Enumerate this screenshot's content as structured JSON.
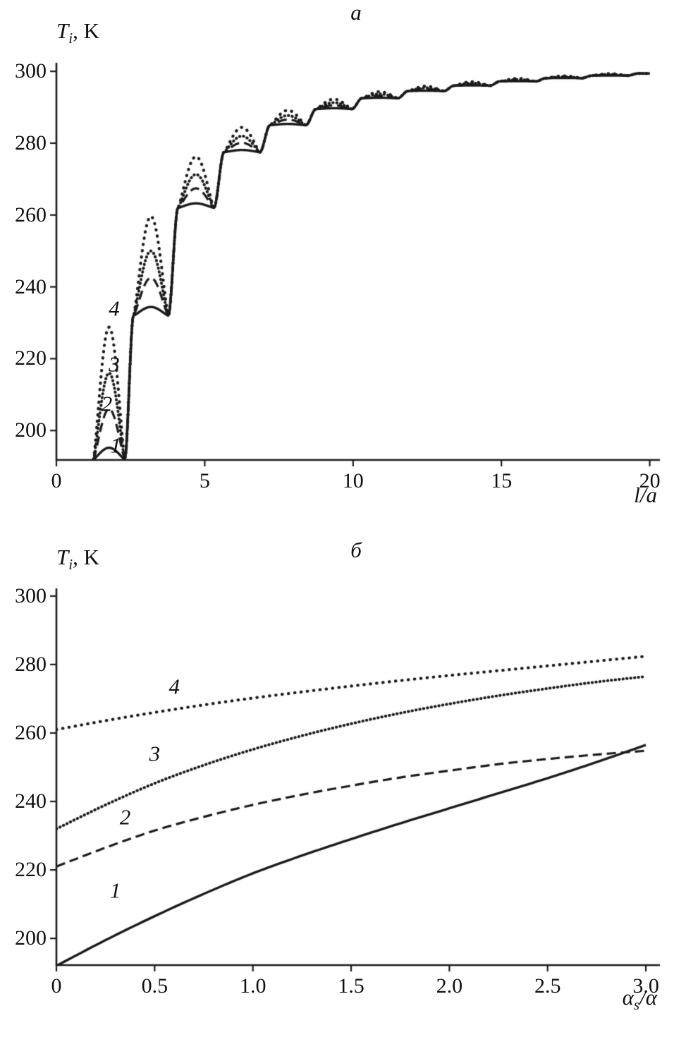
{
  "ink_color": "#1a1a1a",
  "background_color": "#ffffff",
  "chart_data": [
    {
      "type": "line",
      "title": "a",
      "ylabel_parts": {
        "symbol": "T",
        "subscript": "i",
        "unit": ", K"
      },
      "xlabel_parts": {
        "symbol": "l/a",
        "subscript": "",
        "unit": ""
      },
      "xlim": [
        0,
        20.2
      ],
      "ylim": [
        191.8,
        301.2
      ],
      "xticks": [
        0,
        5,
        10,
        15,
        20
      ],
      "xtick_labels": [
        "0",
        "5",
        "10",
        "15",
        "20"
      ],
      "yticks": [
        200,
        220,
        240,
        260,
        280,
        300
      ],
      "ytick_labels": [
        "200",
        "220",
        "240",
        "260",
        "280",
        "300"
      ],
      "grid": false,
      "model": "stepped-scallops",
      "x_draw_max": 20.0,
      "step_boundaries": [
        1.25,
        2.6,
        4.1,
        5.65,
        7.2,
        8.75,
        10.3,
        11.85,
        13.4,
        14.95,
        16.5,
        18.05,
        19.6
      ],
      "plateau_levels": [
        192,
        232,
        262,
        277.5,
        285,
        289.5,
        292.5,
        294.5,
        296,
        297.2,
        298.1,
        298.8,
        299.4
      ],
      "ramp_fraction": 0.22,
      "series": [
        {
          "name": "1",
          "style": "solid",
          "hump_fraction": 0.08
        },
        {
          "name": "2",
          "style": "dashed",
          "hump_fraction": 0.35
        },
        {
          "name": "3",
          "style": "dotted-dense",
          "hump_fraction": 0.6
        },
        {
          "name": "4",
          "style": "dotted-sparse",
          "hump_fraction": 0.92
        }
      ],
      "curve_labels": [
        {
          "text": "4",
          "x": 1.95,
          "y": 234
        },
        {
          "text": "3",
          "x": 1.95,
          "y": 218.5
        },
        {
          "text": "2",
          "x": 1.7,
          "y": 207.5
        },
        {
          "text": "1",
          "x": 2.0,
          "y": 196
        }
      ]
    },
    {
      "type": "line",
      "title": "б",
      "ylabel_parts": {
        "symbol": "T",
        "subscript": "i",
        "unit": ", K"
      },
      "xlabel_parts": {
        "symbol": "α",
        "subscript": "s",
        "unit": "/α"
      },
      "xlim": [
        0,
        3.05
      ],
      "ylim": [
        192.2,
        301
      ],
      "xticks": [
        0,
        0.5,
        1.0,
        1.5,
        2.0,
        2.5,
        3.0
      ],
      "xtick_labels": [
        "0",
        "0.5",
        "1.0",
        "1.5",
        "2.0",
        "2.5",
        "3.0"
      ],
      "yticks": [
        200,
        220,
        240,
        260,
        280,
        300
      ],
      "ytick_labels": [
        "200",
        "220",
        "240",
        "260",
        "280",
        "300"
      ],
      "grid": false,
      "series": [
        {
          "name": "1",
          "style": "solid",
          "points": [
            [
              0,
              192
            ],
            [
              0.25,
              199.5
            ],
            [
              0.5,
              206.5
            ],
            [
              0.75,
              213
            ],
            [
              1,
              219
            ],
            [
              1.25,
              224.2
            ],
            [
              1.5,
              229
            ],
            [
              1.75,
              233.6
            ],
            [
              2,
              238
            ],
            [
              2.25,
              242.4
            ],
            [
              2.5,
              246.8
            ],
            [
              2.75,
              251.5
            ],
            [
              3,
              256.5
            ]
          ]
        },
        {
          "name": "2",
          "style": "dashed",
          "points": [
            [
              0,
              221
            ],
            [
              0.25,
              226.5
            ],
            [
              0.5,
              231.5
            ],
            [
              0.75,
              235.5
            ],
            [
              1,
              239
            ],
            [
              1.25,
              242
            ],
            [
              1.5,
              244.6
            ],
            [
              1.75,
              247
            ],
            [
              2,
              249
            ],
            [
              2.25,
              250.9
            ],
            [
              2.5,
              252.4
            ],
            [
              2.75,
              253.7
            ],
            [
              3,
              254.8
            ]
          ]
        },
        {
          "name": "3",
          "style": "dotted-dense",
          "points": [
            [
              0,
              232
            ],
            [
              0.25,
              239
            ],
            [
              0.5,
              245.3
            ],
            [
              0.75,
              250.6
            ],
            [
              1,
              255.2
            ],
            [
              1.25,
              259.2
            ],
            [
              1.5,
              262.7
            ],
            [
              1.75,
              265.8
            ],
            [
              2,
              268.5
            ],
            [
              2.25,
              270.9
            ],
            [
              2.5,
              273
            ],
            [
              2.75,
              274.9
            ],
            [
              3,
              276.5
            ]
          ]
        },
        {
          "name": "4",
          "style": "dotted-sparse",
          "points": [
            [
              0,
              261
            ],
            [
              0.25,
              263.6
            ],
            [
              0.5,
              266
            ],
            [
              0.75,
              268.2
            ],
            [
              1,
              270.2
            ],
            [
              1.25,
              272
            ],
            [
              1.5,
              273.7
            ],
            [
              1.75,
              275.3
            ],
            [
              2,
              276.8
            ],
            [
              2.25,
              278.2
            ],
            [
              2.5,
              279.6
            ],
            [
              2.75,
              281
            ],
            [
              3,
              282.4
            ]
          ]
        }
      ],
      "curve_labels": [
        {
          "text": "4",
          "x": 0.6,
          "y": 273.5
        },
        {
          "text": "3",
          "x": 0.5,
          "y": 254
        },
        {
          "text": "2",
          "x": 0.35,
          "y": 235.5
        },
        {
          "text": "1",
          "x": 0.3,
          "y": 214
        }
      ]
    }
  ]
}
